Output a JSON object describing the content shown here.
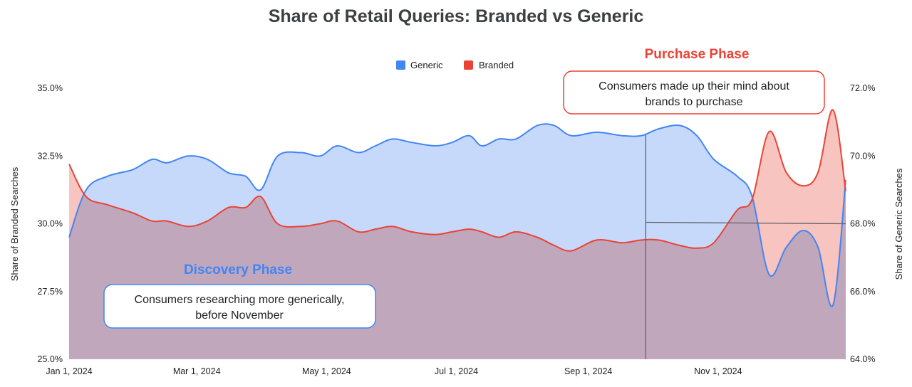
{
  "chart_data": {
    "type": "area",
    "title": "Share of Retail Queries: Branded vs Generic",
    "ylabel_left": "Share of Branded Searches",
    "ylabel_right": "Share of Generic Searches",
    "ylim_left": [
      25.0,
      35.0
    ],
    "ylim_right": [
      64.0,
      72.0
    ],
    "y_ticks_left": [
      "25.0%",
      "27.5%",
      "30.0%",
      "32.5%",
      "35.0%"
    ],
    "y_ticks_right": [
      "64.0%",
      "66.0%",
      "68.0%",
      "70.0%",
      "72.0%"
    ],
    "x_range": [
      "2024-01-01",
      "2024-12-31"
    ],
    "x_ticks": [
      {
        "date": "2024-01-01",
        "label": "Jan 1, 2024"
      },
      {
        "date": "2024-03-01",
        "label": "Mar 1, 2024"
      },
      {
        "date": "2024-05-01",
        "label": "May 1, 2024"
      },
      {
        "date": "2024-07-01",
        "label": "Jul 1, 2024"
      },
      {
        "date": "2024-09-01",
        "label": "Sep 1, 2024"
      },
      {
        "date": "2024-11-01",
        "label": "Nov 1, 2024"
      }
    ],
    "grid": false,
    "legend": "top-center",
    "series": [
      {
        "name": "Generic",
        "axis": "right",
        "color": "#4285f4",
        "fill": "#c6d9fb",
        "points": [
          [
            "2024-01-01",
            67.6
          ],
          [
            "2024-01-09",
            69.0
          ],
          [
            "2024-01-19",
            69.4
          ],
          [
            "2024-01-31",
            69.6
          ],
          [
            "2024-02-09",
            69.9
          ],
          [
            "2024-02-16",
            69.8
          ],
          [
            "2024-02-26",
            70.0
          ],
          [
            "2024-03-06",
            69.9
          ],
          [
            "2024-03-16",
            69.5
          ],
          [
            "2024-03-24",
            69.4
          ],
          [
            "2024-03-31",
            69.0
          ],
          [
            "2024-04-08",
            70.0
          ],
          [
            "2024-04-19",
            70.1
          ],
          [
            "2024-04-28",
            70.0
          ],
          [
            "2024-05-06",
            70.3
          ],
          [
            "2024-05-16",
            70.1
          ],
          [
            "2024-05-24",
            70.3
          ],
          [
            "2024-06-01",
            70.5
          ],
          [
            "2024-06-10",
            70.4
          ],
          [
            "2024-06-21",
            70.3
          ],
          [
            "2024-06-29",
            70.4
          ],
          [
            "2024-07-07",
            70.6
          ],
          [
            "2024-07-13",
            70.3
          ],
          [
            "2024-07-21",
            70.5
          ],
          [
            "2024-07-29",
            70.5
          ],
          [
            "2024-08-08",
            70.9
          ],
          [
            "2024-08-16",
            70.9
          ],
          [
            "2024-08-24",
            70.6
          ],
          [
            "2024-09-05",
            70.7
          ],
          [
            "2024-09-17",
            70.6
          ],
          [
            "2024-09-26",
            70.6
          ],
          [
            "2024-10-04",
            70.8
          ],
          [
            "2024-10-14",
            70.9
          ],
          [
            "2024-10-22",
            70.6
          ],
          [
            "2024-10-30",
            69.9
          ],
          [
            "2024-11-10",
            69.4
          ],
          [
            "2024-11-17",
            68.8
          ],
          [
            "2024-11-25",
            66.5
          ],
          [
            "2024-12-03",
            67.3
          ],
          [
            "2024-12-11",
            67.8
          ],
          [
            "2024-12-18",
            67.3
          ],
          [
            "2024-12-25",
            65.6
          ],
          [
            "2024-12-31",
            69.3
          ]
        ]
      },
      {
        "name": "Branded",
        "axis": "left",
        "color": "#ea4335",
        "fill": "#f7c4bf",
        "points": [
          [
            "2024-01-01",
            32.2
          ],
          [
            "2024-01-09",
            31.0
          ],
          [
            "2024-01-19",
            30.7
          ],
          [
            "2024-01-31",
            30.4
          ],
          [
            "2024-02-09",
            30.1
          ],
          [
            "2024-02-16",
            30.1
          ],
          [
            "2024-02-26",
            29.9
          ],
          [
            "2024-03-06",
            30.1
          ],
          [
            "2024-03-16",
            30.6
          ],
          [
            "2024-03-24",
            30.6
          ],
          [
            "2024-03-31",
            31.0
          ],
          [
            "2024-04-08",
            30.0
          ],
          [
            "2024-04-19",
            29.9
          ],
          [
            "2024-04-28",
            30.0
          ],
          [
            "2024-05-06",
            30.1
          ],
          [
            "2024-05-16",
            29.7
          ],
          [
            "2024-05-24",
            29.8
          ],
          [
            "2024-06-01",
            29.9
          ],
          [
            "2024-06-10",
            29.7
          ],
          [
            "2024-06-21",
            29.6
          ],
          [
            "2024-06-29",
            29.7
          ],
          [
            "2024-07-07",
            29.8
          ],
          [
            "2024-07-13",
            29.7
          ],
          [
            "2024-07-21",
            29.5
          ],
          [
            "2024-07-29",
            29.7
          ],
          [
            "2024-08-08",
            29.5
          ],
          [
            "2024-08-16",
            29.2
          ],
          [
            "2024-08-24",
            29.0
          ],
          [
            "2024-09-05",
            29.4
          ],
          [
            "2024-09-17",
            29.3
          ],
          [
            "2024-09-26",
            29.4
          ],
          [
            "2024-10-04",
            29.4
          ],
          [
            "2024-10-14",
            29.2
          ],
          [
            "2024-10-22",
            29.1
          ],
          [
            "2024-10-30",
            29.3
          ],
          [
            "2024-11-10",
            30.5
          ],
          [
            "2024-11-17",
            30.9
          ],
          [
            "2024-11-25",
            33.4
          ],
          [
            "2024-12-03",
            31.9
          ],
          [
            "2024-12-11",
            31.4
          ],
          [
            "2024-12-18",
            31.9
          ],
          [
            "2024-12-25",
            34.2
          ],
          [
            "2024-12-31",
            31.2
          ]
        ]
      }
    ],
    "reference_lines": [
      {
        "type": "vertical",
        "date": "2024-09-28"
      },
      {
        "type": "horizontal",
        "axis": "right",
        "value": 68.0,
        "from": "2024-09-28",
        "to": "2024-12-31"
      }
    ],
    "annotations": [
      {
        "kind": "phase",
        "text": "Purchase Phase",
        "color": "#ea4335"
      },
      {
        "kind": "note",
        "lines": [
          "Consumers made up their mind about",
          "brands to purchase"
        ],
        "border": "#ea4335"
      },
      {
        "kind": "phase",
        "text": "Discovery Phase",
        "color": "#4285f4"
      },
      {
        "kind": "note",
        "lines": [
          "Consumers researching more generically,",
          "before November"
        ],
        "border": "#4285f4"
      }
    ]
  }
}
